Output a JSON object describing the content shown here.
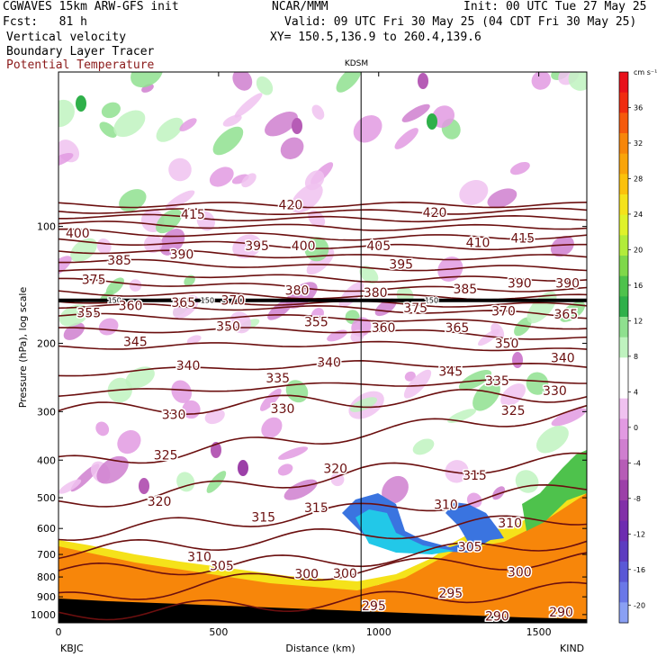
{
  "header": {
    "model": "CGWAVES 15km ARW-GFS init",
    "org": "NCAR/MMM",
    "init": "Init: 00 UTC Tue 27 May 25",
    "fcst": "Fcst:   81 h",
    "valid": "Valid: 09 UTC Fri 30 May 25 (04 CDT Fri 30 May 25)",
    "xy": "XY= 150.5,136.9 to 260.4,139.6",
    "fields": [
      "Vertical velocity",
      "Boundary Layer Tracer",
      "Potential Temperature"
    ],
    "field_colors": [
      "#000000",
      "#000000",
      "#8b1a1a"
    ]
  },
  "chart_data": {
    "type": "heatmap",
    "xlabel": "Distance (km)",
    "ylabel": "Pressure (hPa), log scale",
    "xlim": [
      0,
      1650
    ],
    "ylim": [
      1050,
      40
    ],
    "y_scale": "log",
    "x_ticks": [
      0,
      500,
      1000,
      1500
    ],
    "x_tick_labels": [
      "0",
      "500",
      "1000",
      "1500"
    ],
    "y_ticks": [
      100,
      200,
      300,
      400,
      500,
      600,
      700,
      800,
      900,
      1000
    ],
    "y_tick_labels": [
      "100",
      "200",
      "300",
      "400",
      "500",
      "600",
      "700",
      "800",
      "900",
      "1000"
    ],
    "station_left": "KBJC",
    "station_right": "KIND",
    "station_mid": "KDSM",
    "station_mid_x": 945,
    "colorbar": {
      "unit": "cm s⁻¹",
      "labels": [
        "36",
        "32",
        "28",
        "24",
        "20",
        "16",
        "12",
        "8",
        "4",
        "0",
        "-4",
        "-8",
        "-12",
        "-16",
        "-20"
      ],
      "label_values": [
        36,
        32,
        28,
        24,
        20,
        16,
        12,
        8,
        4,
        0,
        -4,
        -8,
        -12,
        -16,
        -20
      ],
      "colors": [
        "#e8101a",
        "#f02c10",
        "#f55a0c",
        "#f7860a",
        "#f9a40a",
        "#fbc10c",
        "#f5e21a",
        "#dff22a",
        "#b2ec3a",
        "#7fd84a",
        "#4ec24c",
        "#2fb04a",
        "#8fe08f",
        "#bff3bf",
        "#ffffff",
        "#ffffff",
        "#f0c2f0",
        "#e29ae2",
        "#cf7fcf",
        "#b65cb6",
        "#9c40a8",
        "#8230a8",
        "#6e2cb0",
        "#5d3cc0",
        "#5a58d6",
        "#6a78e8",
        "#8aa0f4"
      ]
    },
    "theta_contours": [
      {
        "value": 295,
        "p_left": 1000,
        "p_mid": 920,
        "p_right": 860
      },
      {
        "value": 300,
        "p_left": 920,
        "p_mid": 760,
        "p_right": 720
      },
      {
        "value": 305,
        "p_left": 780,
        "p_mid": 720,
        "p_right": 640
      },
      {
        "value": 310,
        "p_left": 690,
        "p_mid": 620,
        "p_right": 560
      },
      {
        "value": 315,
        "p_left": 620,
        "p_mid": 540,
        "p_right": 470
      },
      {
        "value": 320,
        "p_left": 520,
        "p_mid": 430,
        "p_right": 400
      },
      {
        "value": 325,
        "p_left": 410,
        "p_mid": 340,
        "p_right": 300
      },
      {
        "value": 330,
        "p_left": 300,
        "p_mid": 280,
        "p_right": 270
      },
      {
        "value": 335,
        "p_left": 270,
        "p_mid": 255,
        "p_right": 250
      },
      {
        "value": 340,
        "p_left": 240,
        "p_mid": 225,
        "p_right": 230
      },
      {
        "value": 345,
        "p_left": 205,
        "p_mid": 200,
        "p_right": 210
      },
      {
        "value": 350,
        "p_left": 185,
        "p_mid": 185,
        "p_right": 195
      },
      {
        "value": 355,
        "p_left": 170,
        "p_mid": 172,
        "p_right": 182
      },
      {
        "value": 360,
        "p_left": 160,
        "p_mid": 163,
        "p_right": 170
      },
      {
        "value": 365,
        "p_left": 155,
        "p_mid": 158,
        "p_right": 160
      },
      {
        "value": 370,
        "p_left": 148,
        "p_mid": 152,
        "p_right": 152
      },
      {
        "value": 375,
        "p_left": 138,
        "p_mid": 145,
        "p_right": 145
      },
      {
        "value": 380,
        "p_left": 130,
        "p_mid": 137,
        "p_right": 136
      },
      {
        "value": 385,
        "p_left": 122,
        "p_mid": 128,
        "p_right": 128
      },
      {
        "value": 390,
        "p_left": 115,
        "p_mid": 120,
        "p_right": 120
      },
      {
        "value": 395,
        "p_left": 109,
        "p_mid": 113,
        "p_right": 113
      },
      {
        "value": 400,
        "p_left": 103,
        "p_mid": 107,
        "p_right": 106
      },
      {
        "value": 405,
        "p_left": 98,
        "p_mid": 101,
        "p_right": 100
      },
      {
        "value": 410,
        "p_left": 94,
        "p_mid": 96,
        "p_right": 95
      },
      {
        "value": 415,
        "p_left": 91,
        "p_mid": 92,
        "p_right": 91
      },
      {
        "value": 420,
        "p_left": 88,
        "p_mid": 88,
        "p_right": 88
      }
    ],
    "theta_labels": [
      {
        "text": "400",
        "x": 60,
        "p": 104
      },
      {
        "text": "415",
        "x": 420,
        "p": 93
      },
      {
        "text": "420",
        "x": 725,
        "p": 88
      },
      {
        "text": "420",
        "x": 1175,
        "p": 92
      },
      {
        "text": "385",
        "x": 190,
        "p": 122
      },
      {
        "text": "390",
        "x": 385,
        "p": 118
      },
      {
        "text": "395",
        "x": 620,
        "p": 112
      },
      {
        "text": "400",
        "x": 765,
        "p": 112
      },
      {
        "text": "405",
        "x": 1000,
        "p": 112
      },
      {
        "text": "410",
        "x": 1310,
        "p": 110
      },
      {
        "text": "415",
        "x": 1450,
        "p": 107
      },
      {
        "text": "375",
        "x": 110,
        "p": 137
      },
      {
        "text": "395",
        "x": 1070,
        "p": 125
      },
      {
        "text": "380",
        "x": 745,
        "p": 146
      },
      {
        "text": "380",
        "x": 990,
        "p": 148
      },
      {
        "text": "385",
        "x": 1270,
        "p": 145
      },
      {
        "text": "390",
        "x": 1440,
        "p": 140
      },
      {
        "text": "390",
        "x": 1590,
        "p": 140
      },
      {
        "text": "360",
        "x": 225,
        "p": 160
      },
      {
        "text": "365",
        "x": 390,
        "p": 157
      },
      {
        "text": "370",
        "x": 545,
        "p": 155
      },
      {
        "text": "375",
        "x": 1115,
        "p": 162
      },
      {
        "text": "370",
        "x": 1390,
        "p": 165
      },
      {
        "text": "365",
        "x": 1585,
        "p": 168
      },
      {
        "text": "355",
        "x": 95,
        "p": 167
      },
      {
        "text": "355",
        "x": 805,
        "p": 176
      },
      {
        "text": "350",
        "x": 530,
        "p": 181
      },
      {
        "text": "360",
        "x": 1015,
        "p": 182
      },
      {
        "text": "365",
        "x": 1245,
        "p": 182
      },
      {
        "text": "345",
        "x": 240,
        "p": 198
      },
      {
        "text": "350",
        "x": 1400,
        "p": 200
      },
      {
        "text": "340",
        "x": 405,
        "p": 228
      },
      {
        "text": "340",
        "x": 845,
        "p": 224
      },
      {
        "text": "340",
        "x": 1575,
        "p": 218
      },
      {
        "text": "345",
        "x": 1225,
        "p": 236
      },
      {
        "text": "335",
        "x": 685,
        "p": 246
      },
      {
        "text": "335",
        "x": 1370,
        "p": 250
      },
      {
        "text": "330",
        "x": 1550,
        "p": 265
      },
      {
        "text": "330",
        "x": 360,
        "p": 305
      },
      {
        "text": "330",
        "x": 700,
        "p": 295
      },
      {
        "text": "325",
        "x": 1420,
        "p": 298
      },
      {
        "text": "325",
        "x": 335,
        "p": 388
      },
      {
        "text": "320",
        "x": 865,
        "p": 420
      },
      {
        "text": "315",
        "x": 1300,
        "p": 438
      },
      {
        "text": "320",
        "x": 315,
        "p": 510
      },
      {
        "text": "315",
        "x": 640,
        "p": 560
      },
      {
        "text": "315",
        "x": 805,
        "p": 530
      },
      {
        "text": "310",
        "x": 1210,
        "p": 520
      },
      {
        "text": "310",
        "x": 1410,
        "p": 580
      },
      {
        "text": "310",
        "x": 440,
        "p": 710
      },
      {
        "text": "305",
        "x": 510,
        "p": 748
      },
      {
        "text": "305",
        "x": 1285,
        "p": 668
      },
      {
        "text": "300",
        "x": 775,
        "p": 785
      },
      {
        "text": "300",
        "x": 895,
        "p": 782
      },
      {
        "text": "300",
        "x": 1440,
        "p": 776
      },
      {
        "text": "295",
        "x": 985,
        "p": 948
      },
      {
        "text": "295",
        "x": 1225,
        "p": 880
      },
      {
        "text": "290",
        "x": 1370,
        "p": 1010
      },
      {
        "text": "290",
        "x": 1570,
        "p": 985
      }
    ],
    "tracer_label": "150",
    "tracer_label_x": [
      175,
      465,
      1165
    ],
    "tracer_level_p": 155
  }
}
